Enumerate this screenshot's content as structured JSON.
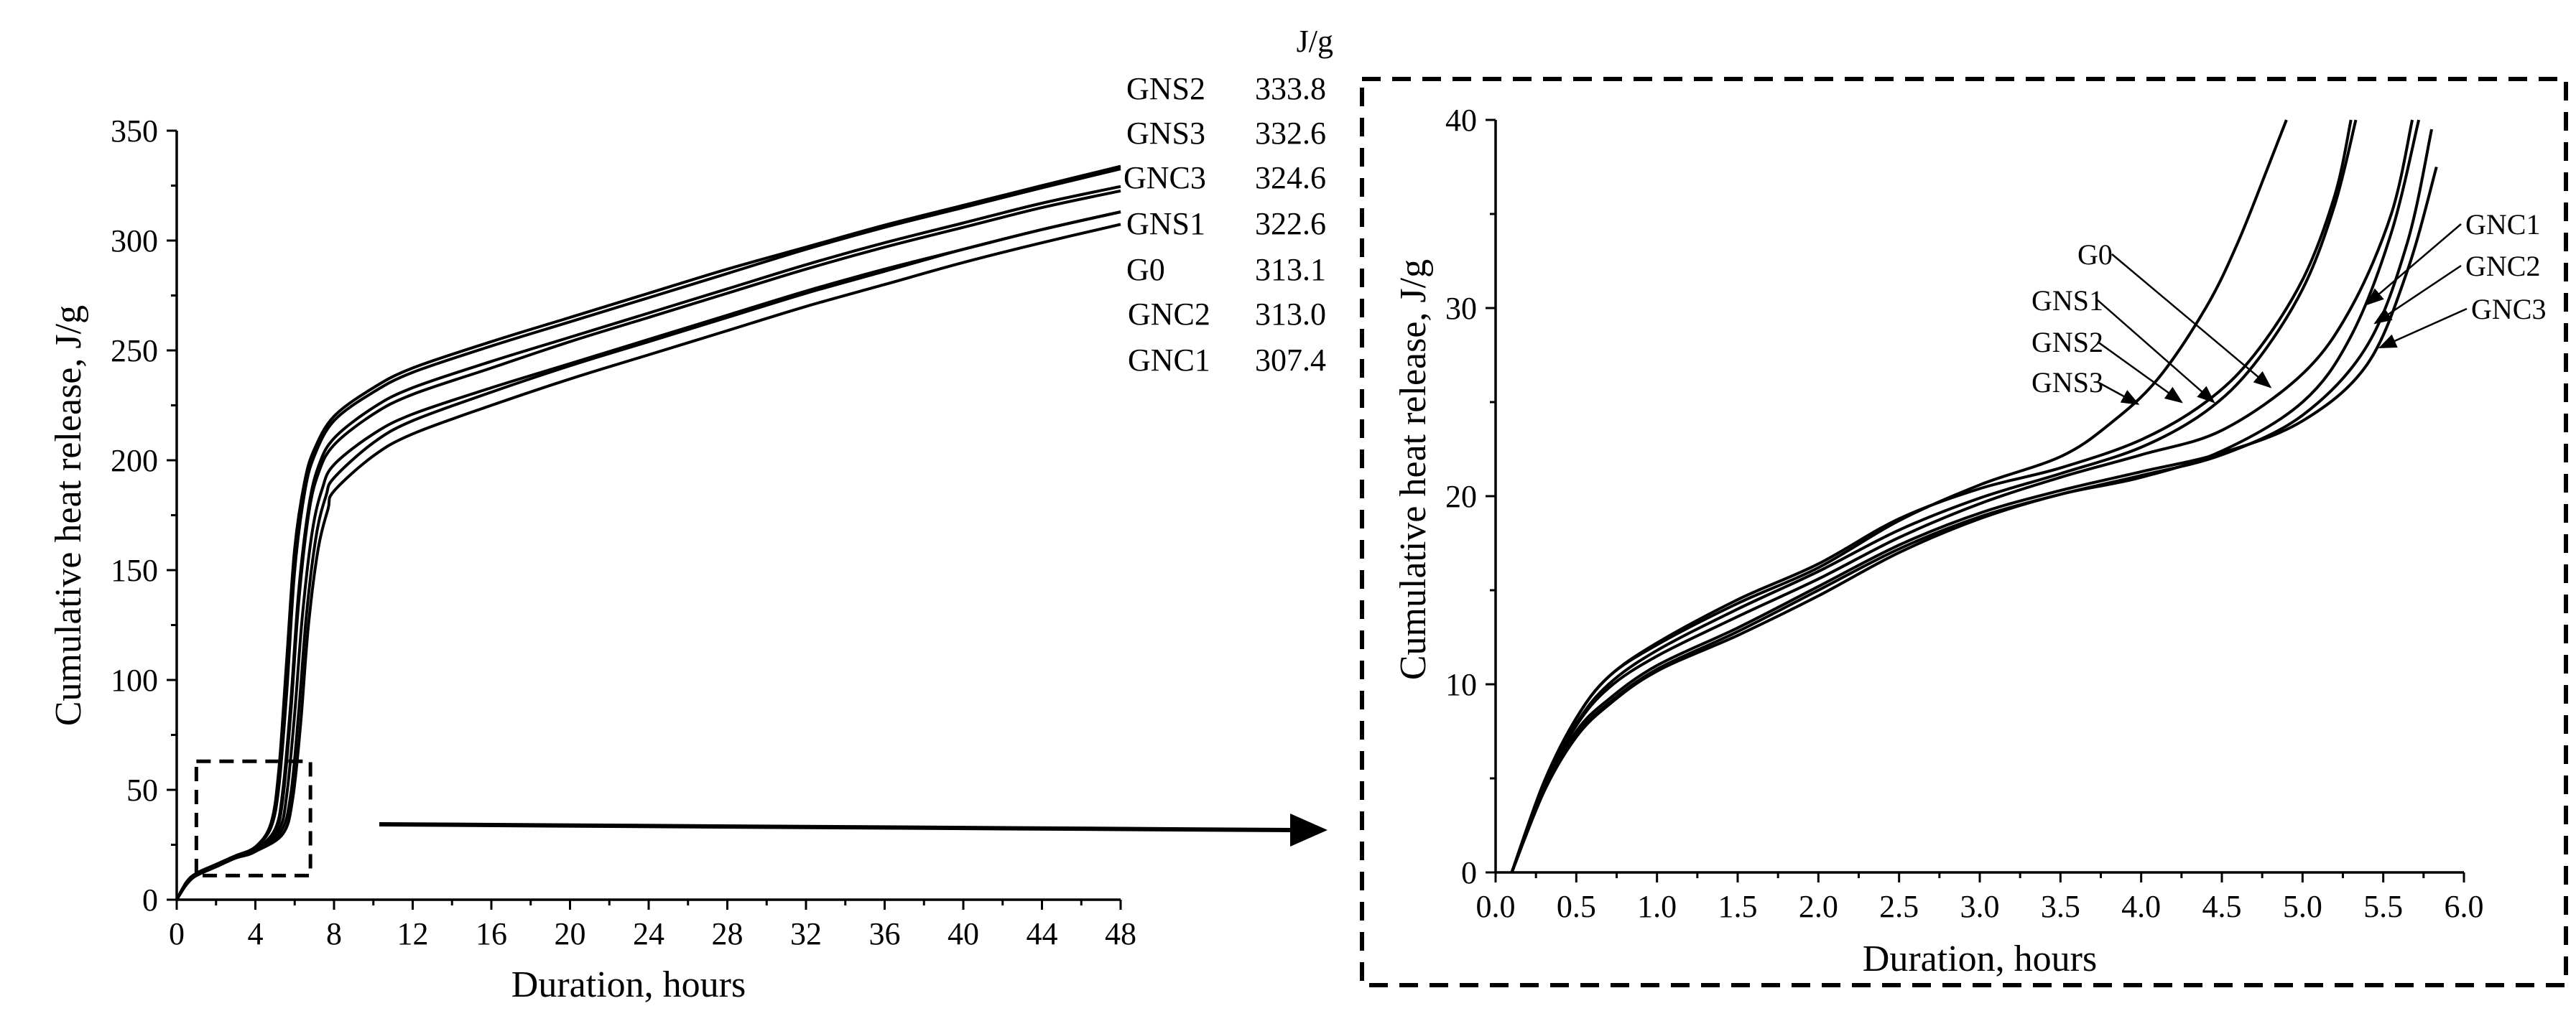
{
  "units_label": "J/g",
  "legend": [
    {
      "name": "GNS2",
      "value": "333.8"
    },
    {
      "name": "GNS3",
      "value": "332.6"
    },
    {
      "name": "GNC3",
      "value": "324.6"
    },
    {
      "name": "GNS1",
      "value": "322.6"
    },
    {
      "name": "G0",
      "value": "313.1"
    },
    {
      "name": "GNC2",
      "value": "313.0"
    },
    {
      "name": "GNC1",
      "value": "307.4"
    }
  ],
  "chart_data": [
    {
      "type": "line",
      "title": "",
      "xlabel": "Duration, hours",
      "ylabel": "Cumulative heat release, J/g",
      "xlim": [
        0,
        48
      ],
      "ylim": [
        0,
        350
      ],
      "xticks": [
        "0",
        "4",
        "8",
        "12",
        "16",
        "20",
        "24",
        "28",
        "32",
        "36",
        "40",
        "44",
        "48"
      ],
      "yticks": [
        "0",
        "50",
        "100",
        "150",
        "200",
        "250",
        "300",
        "350"
      ],
      "zoom_box": {
        "x": [
          1,
          6.8
        ],
        "y": [
          11,
          63
        ]
      },
      "series": [
        {
          "name": "GNS2",
          "x": [
            0,
            0.5,
            1,
            2,
            3,
            4,
            4.8,
            5.2,
            5.6,
            6.0,
            6.5,
            7.0,
            8,
            10,
            12,
            16,
            20,
            24,
            28,
            32,
            36,
            40,
            44,
            48
          ],
          "values": [
            0,
            8,
            12,
            16,
            20,
            24,
            35,
            60,
            110,
            160,
            190,
            205,
            220,
            233,
            242,
            254,
            265,
            276,
            287,
            297,
            307,
            316,
            325,
            333.8
          ]
        },
        {
          "name": "GNS3",
          "x": [
            0,
            0.5,
            1,
            2,
            3,
            4,
            4.8,
            5.2,
            5.6,
            6.0,
            6.5,
            7.0,
            8,
            10,
            12,
            16,
            20,
            24,
            28,
            32,
            36,
            40,
            44,
            48
          ],
          "values": [
            0,
            8,
            12,
            16,
            20,
            24,
            33,
            52,
            95,
            150,
            185,
            202,
            218,
            231,
            240,
            252,
            263,
            274,
            285,
            296,
            306,
            315,
            324,
            332.6
          ]
        },
        {
          "name": "GNC3",
          "x": [
            0,
            0.5,
            1,
            2,
            3,
            4,
            5.0,
            5.4,
            5.8,
            6.2,
            6.7,
            7.2,
            8,
            10,
            12,
            16,
            20,
            24,
            28,
            32,
            36,
            40,
            44,
            48
          ],
          "values": [
            0,
            8,
            12,
            16,
            20,
            23,
            32,
            50,
            90,
            140,
            178,
            197,
            210,
            224,
            233,
            245,
            256,
            267,
            278,
            289,
            299,
            308,
            317,
            324.6
          ]
        },
        {
          "name": "GNS1",
          "x": [
            0,
            0.5,
            1,
            2,
            3,
            4,
            5.0,
            5.4,
            5.8,
            6.2,
            6.7,
            7.2,
            8,
            10,
            12,
            16,
            20,
            24,
            28,
            32,
            36,
            40,
            44,
            48
          ],
          "values": [
            0,
            8,
            12,
            16,
            20,
            23,
            31,
            46,
            85,
            135,
            175,
            194,
            207,
            221,
            230,
            242,
            254,
            265,
            276,
            287,
            297,
            306,
            315,
            322.6
          ]
        },
        {
          "name": "G0",
          "x": [
            0,
            0.5,
            1,
            2,
            3,
            4,
            5.2,
            5.6,
            6.0,
            6.4,
            6.9,
            7.4,
            8,
            10,
            12,
            16,
            20,
            24,
            28,
            32,
            36,
            40,
            44,
            48
          ],
          "values": [
            0,
            7,
            11,
            15,
            19,
            22,
            32,
            48,
            85,
            130,
            168,
            187,
            198,
            212,
            221,
            233,
            244,
            255,
            266,
            277,
            287,
            296,
            305,
            313.1
          ]
        },
        {
          "name": "GNC2",
          "x": [
            0,
            0.5,
            1,
            2,
            3,
            4,
            5.3,
            5.8,
            6.2,
            6.6,
            7.1,
            7.6,
            8,
            10,
            12,
            16,
            20,
            24,
            28,
            32,
            36,
            40,
            44,
            48
          ],
          "values": [
            0,
            7,
            11,
            15,
            19,
            22,
            31,
            48,
            85,
            130,
            166,
            184,
            192,
            208,
            218,
            231,
            243,
            254,
            265,
            276,
            286,
            296,
            305,
            313.0
          ]
        },
        {
          "name": "GNC1",
          "x": [
            0,
            0.5,
            1,
            2,
            3,
            4,
            5.4,
            5.9,
            6.3,
            6.7,
            7.2,
            7.7,
            8,
            10,
            12,
            16,
            20,
            24,
            28,
            32,
            36,
            40,
            44,
            48
          ],
          "values": [
            0,
            7,
            11,
            15,
            19,
            22,
            30,
            46,
            80,
            125,
            160,
            178,
            186,
            202,
            212,
            225,
            237,
            248,
            259,
            270,
            280,
            290,
            299,
            307.4
          ]
        }
      ]
    },
    {
      "type": "line",
      "title": "",
      "xlabel": "Duration, hours",
      "ylabel": "Cumulative heat release, J/g",
      "xlim": [
        0,
        6
      ],
      "ylim": [
        0,
        40
      ],
      "xticks": [
        "0.0",
        "0.5",
        "1.0",
        "1.5",
        "2.0",
        "2.5",
        "3.0",
        "3.5",
        "4.0",
        "4.5",
        "5.0",
        "5.5",
        "6.0"
      ],
      "yticks": [
        "0",
        "10",
        "20",
        "30",
        "40"
      ],
      "series": [
        {
          "name": "GNS3",
          "x": [
            0.1,
            0.3,
            0.5,
            0.7,
            1.0,
            1.5,
            2.0,
            2.5,
            3.0,
            3.5,
            3.8,
            4.1,
            4.4,
            4.6,
            4.8,
            4.9
          ],
          "values": [
            0,
            4.8,
            8.2,
            10.4,
            12.1,
            14.3,
            16.2,
            18.7,
            20.6,
            22.1,
            23.8,
            26.2,
            30.0,
            33.5,
            37.8,
            40
          ]
        },
        {
          "name": "GNS2",
          "x": [
            0.1,
            0.3,
            0.5,
            0.7,
            1.0,
            1.5,
            2.0,
            2.5,
            3.0,
            3.5,
            4.0,
            4.4,
            4.7,
            5.0,
            5.2,
            5.3
          ],
          "values": [
            0,
            4.8,
            8.2,
            10.4,
            12.2,
            14.5,
            16.4,
            18.8,
            20.4,
            21.5,
            23.0,
            25.0,
            27.5,
            31.5,
            36.0,
            40
          ]
        },
        {
          "name": "GNS1",
          "x": [
            0.1,
            0.3,
            0.5,
            0.7,
            1.0,
            1.5,
            2.0,
            2.5,
            3.0,
            3.5,
            4.0,
            4.4,
            4.7,
            5.0,
            5.2,
            5.33
          ],
          "values": [
            0,
            4.6,
            7.9,
            10.0,
            11.8,
            14.0,
            16.0,
            18.2,
            19.9,
            21.2,
            22.6,
            24.5,
            27.0,
            31.0,
            35.5,
            40
          ]
        },
        {
          "name": "G0",
          "x": [
            0.1,
            0.3,
            0.5,
            0.7,
            1.0,
            1.5,
            2.0,
            2.5,
            3.0,
            3.5,
            4.0,
            4.5,
            5.0,
            5.3,
            5.55,
            5.68
          ],
          "values": [
            0,
            4.6,
            7.8,
            9.8,
            11.5,
            13.6,
            15.6,
            17.8,
            19.6,
            21.0,
            22.2,
            23.5,
            26.5,
            30.0,
            35.0,
            40
          ]
        },
        {
          "name": "GNC1",
          "x": [
            0.1,
            0.3,
            0.5,
            0.7,
            1.0,
            1.5,
            2.0,
            2.5,
            3.0,
            3.5,
            4.0,
            4.5,
            5.0,
            5.3,
            5.55,
            5.72
          ],
          "values": [
            0,
            4.3,
            7.2,
            8.9,
            10.7,
            12.6,
            14.7,
            17.0,
            18.8,
            20.1,
            21.0,
            22.4,
            25.0,
            28.5,
            34.0,
            40
          ]
        },
        {
          "name": "GNC2",
          "x": [
            0.1,
            0.3,
            0.5,
            0.7,
            1.0,
            1.5,
            2.0,
            2.5,
            3.0,
            3.5,
            4.0,
            4.5,
            5.0,
            5.4,
            5.65,
            5.8
          ],
          "values": [
            0,
            4.3,
            7.3,
            9.0,
            10.8,
            12.8,
            15.0,
            17.2,
            18.9,
            20.1,
            21.1,
            22.2,
            24.3,
            28.0,
            33.5,
            39.5
          ]
        },
        {
          "name": "GNC3",
          "x": [
            0.1,
            0.3,
            0.5,
            0.7,
            1.0,
            1.5,
            2.0,
            2.5,
            3.0,
            3.5,
            4.0,
            4.5,
            5.0,
            5.4,
            5.65,
            5.83
          ],
          "values": [
            0,
            4.4,
            7.5,
            9.2,
            11.0,
            13.0,
            15.2,
            17.4,
            19.1,
            20.3,
            21.3,
            22.3,
            24.0,
            27.0,
            32.0,
            37.5
          ]
        }
      ],
      "annotations": [
        {
          "label": "G0",
          "points_to": "G0",
          "arrow_tip": [
            4.8,
            25.8
          ]
        },
        {
          "label": "GNS1",
          "points_to": "GNS1",
          "arrow_tip": [
            4.45,
            25.0
          ]
        },
        {
          "label": "GNS2",
          "points_to": "GNS2",
          "arrow_tip": [
            4.25,
            25.0
          ]
        },
        {
          "label": "GNS3",
          "points_to": "GNS3",
          "arrow_tip": [
            3.98,
            24.9
          ]
        },
        {
          "label": "GNC1",
          "points_to": "GNC1",
          "arrow_tip": [
            5.4,
            30.2
          ]
        },
        {
          "label": "GNC2",
          "points_to": "GNC2",
          "arrow_tip": [
            5.45,
            29.2
          ]
        },
        {
          "label": "GNC3",
          "points_to": "GNC3",
          "arrow_tip": [
            5.48,
            27.9
          ]
        }
      ]
    }
  ]
}
